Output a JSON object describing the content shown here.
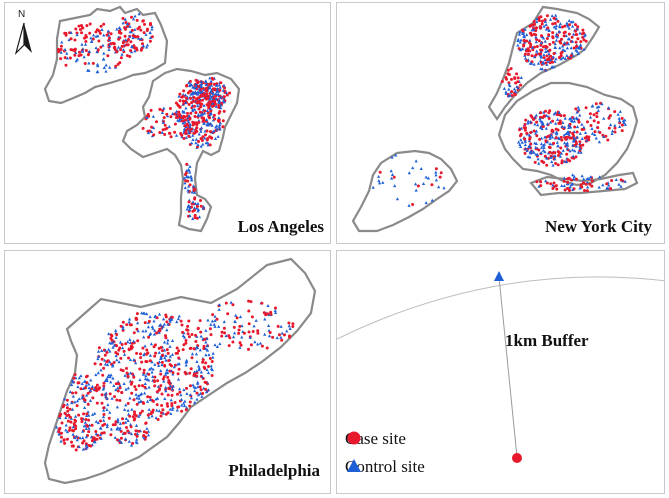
{
  "panels": {
    "la": {
      "label": "Los Angeles"
    },
    "ny": {
      "label": "New York City"
    },
    "ph": {
      "label": "Philadelphia"
    }
  },
  "north_arrow": {
    "letter": "N"
  },
  "legend": {
    "buffer_label": "1km Buffer",
    "case_label": "Case site",
    "control_label": "Control site"
  },
  "colors": {
    "case": "#e8192c",
    "control": "#1f5fd6",
    "boundary": "#8a8a8a",
    "buffer_arc": "#bdbdbd"
  },
  "markers": {
    "case_icon": "red-circle",
    "control_icon": "blue-triangle"
  }
}
